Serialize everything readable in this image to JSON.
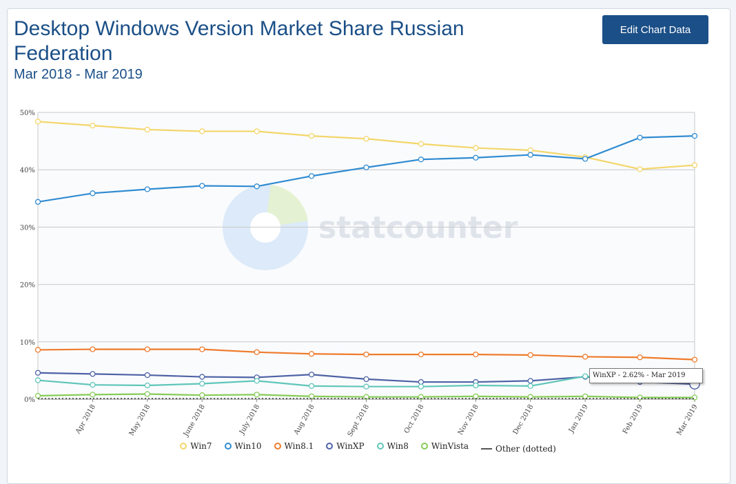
{
  "header": {
    "title": "Desktop Windows Version Market Share Russian Federation",
    "subtitle": "Mar 2018 - Mar 2019",
    "edit_button_label": "Edit Chart Data"
  },
  "watermark": {
    "text": "statcounter"
  },
  "tooltip": {
    "text": "WinXP - 2.62% - Mar 2019"
  },
  "chart_data": {
    "type": "line",
    "categories": [
      "Mar 2018",
      "Apr 2018",
      "May 2018",
      "June 2018",
      "July 2018",
      "Aug 2018",
      "Sept 2018",
      "Oct 2018",
      "Nov 2018",
      "Dec 2018",
      "Jan 2019",
      "Feb 2019",
      "Mar 2019"
    ],
    "x_tick_labels": [
      "Apr 2018",
      "May 2018",
      "June 2018",
      "July 2018",
      "Aug 2018",
      "Sept 2018",
      "Oct 2018",
      "Nov 2018",
      "Dec 2018",
      "Jan 2019",
      "Feb 2019",
      "Mar 2019"
    ],
    "y_ticks": [
      "0%",
      "10%",
      "20%",
      "30%",
      "40%",
      "50%"
    ],
    "ylim": [
      0,
      50
    ],
    "grid": true,
    "legend_position": "bottom",
    "series": [
      {
        "name": "Win7",
        "color": "#f3d66a",
        "values": [
          48.4,
          47.7,
          47.0,
          46.7,
          46.7,
          45.9,
          45.4,
          44.5,
          43.8,
          43.4,
          42.2,
          40.1,
          40.8
        ]
      },
      {
        "name": "Win10",
        "color": "#2f8bd1",
        "values": [
          34.4,
          35.9,
          36.6,
          37.2,
          37.1,
          38.9,
          40.4,
          41.8,
          42.1,
          42.6,
          41.9,
          45.6,
          45.9
        ]
      },
      {
        "name": "Win8.1",
        "color": "#ef7b2c",
        "values": [
          8.6,
          8.7,
          8.7,
          8.7,
          8.2,
          7.9,
          7.8,
          7.8,
          7.8,
          7.7,
          7.4,
          7.3,
          6.9
        ]
      },
      {
        "name": "WinXP",
        "color": "#4e62a5",
        "values": [
          4.6,
          4.4,
          4.2,
          3.9,
          3.8,
          4.3,
          3.5,
          3.0,
          3.0,
          3.2,
          3.9,
          3.0,
          2.62
        ]
      },
      {
        "name": "Win8",
        "color": "#5fc6b9",
        "values": [
          3.3,
          2.5,
          2.4,
          2.7,
          3.2,
          2.3,
          2.2,
          2.2,
          2.4,
          2.3,
          4.0,
          3.2,
          2.9
        ]
      },
      {
        "name": "WinVista",
        "color": "#86cc57",
        "values": [
          0.6,
          0.8,
          0.9,
          0.7,
          0.8,
          0.5,
          0.4,
          0.4,
          0.5,
          0.4,
          0.5,
          0.3,
          0.3
        ]
      },
      {
        "name": "Other (dotted)",
        "color": "#555555",
        "values": [
          0.1,
          0.1,
          0.1,
          0.1,
          0.1,
          0.1,
          0.1,
          0.1,
          0.1,
          0.1,
          0.1,
          0.1,
          0.1
        ]
      }
    ]
  }
}
